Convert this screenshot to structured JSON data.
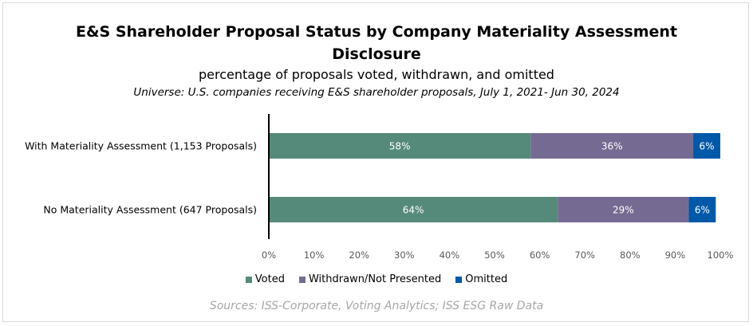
{
  "title_line1": "E&S Shareholder Proposal Status by Company Materiality Assessment",
  "title_line2": "Disclosure",
  "subtitle": "percentage of proposals voted, withdrawn, and omitted",
  "universe": "Universe: U.S. companies receiving E&S shareholder proposals, July 1, 2021- Jun 30, 2024",
  "source": "Sources: ISS-Corporate, Voting Analytics; ISS ESG Raw Data",
  "chart_data": {
    "type": "bar",
    "orientation": "horizontal",
    "stacked": true,
    "categories": [
      "With Materiality Assessment (1,153 Proposals)",
      "No Materiality Assessment (647 Proposals)"
    ],
    "series": [
      {
        "name": "Voted",
        "values": [
          58,
          64
        ],
        "labels": [
          "58%",
          "64%"
        ],
        "color": "#558a7a"
      },
      {
        "name": "Withdrawn/Not Presented",
        "values": [
          36,
          29
        ],
        "labels": [
          "36%",
          "29%"
        ],
        "color": "#756b92"
      },
      {
        "name": "Omitted",
        "values": [
          6,
          6
        ],
        "labels": [
          "6%",
          "6%"
        ],
        "color": "#0059a8"
      }
    ],
    "xlim": [
      0,
      100
    ],
    "x_ticks": [
      "0%",
      "10%",
      "20%",
      "30%",
      "40%",
      "50%",
      "60%",
      "70%",
      "80%",
      "90%",
      "100%"
    ],
    "grid": false,
    "legend_position": "bottom"
  }
}
